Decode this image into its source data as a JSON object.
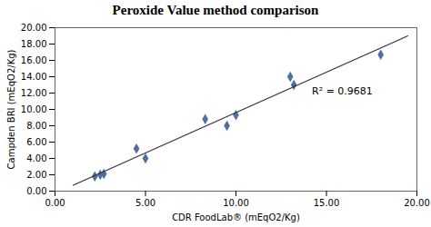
{
  "chart_data": {
    "type": "scatter",
    "title": "Peroxide Value method comparison",
    "xlabel": "CDR FoodLab® (mEqO2/Kg)",
    "ylabel": "Campden BRI (mEqO2/Kg)",
    "series": [
      {
        "type": "scatter",
        "marker": "diamond",
        "color": "#4f6fa0",
        "x": [
          2.2,
          2.5,
          2.7,
          4.5,
          5.0,
          8.3,
          9.5,
          10.0,
          13.0,
          13.2,
          18.0
        ],
        "values": [
          1.8,
          2.0,
          2.1,
          5.2,
          4.0,
          8.8,
          8.0,
          9.3,
          14.0,
          13.0,
          16.7
        ]
      },
      {
        "type": "line",
        "line_style": "solid",
        "color": "#333333",
        "x": [
          1.0,
          19.5
        ],
        "values": [
          0.7254,
          18.9929
        ]
      }
    ],
    "annotations": [
      {
        "text": "R² = 0.9681",
        "x": 14.2,
        "y": 11.8
      }
    ],
    "xlim": [
      0,
      20
    ],
    "ylim": [
      0,
      20
    ],
    "xticks": [
      {
        "value": 0,
        "label": "0.00"
      },
      {
        "value": 5,
        "label": "5.00"
      },
      {
        "value": 10,
        "label": "10.00"
      },
      {
        "value": 15,
        "label": "15.00"
      },
      {
        "value": 20,
        "label": "20.00"
      }
    ],
    "yticks": [
      {
        "value": 0,
        "label": "0.00"
      },
      {
        "value": 2,
        "label": "2.00"
      },
      {
        "value": 4,
        "label": "4.00"
      },
      {
        "value": 6,
        "label": "6.00"
      },
      {
        "value": 8,
        "label": "8.00"
      },
      {
        "value": 10,
        "label": "10.00"
      },
      {
        "value": 12,
        "label": "12.00"
      },
      {
        "value": 14,
        "label": "14.00"
      },
      {
        "value": 16,
        "label": "16.00"
      },
      {
        "value": 18,
        "label": "18.00"
      },
      {
        "value": 20,
        "label": "20.00"
      }
    ],
    "grid": false
  }
}
